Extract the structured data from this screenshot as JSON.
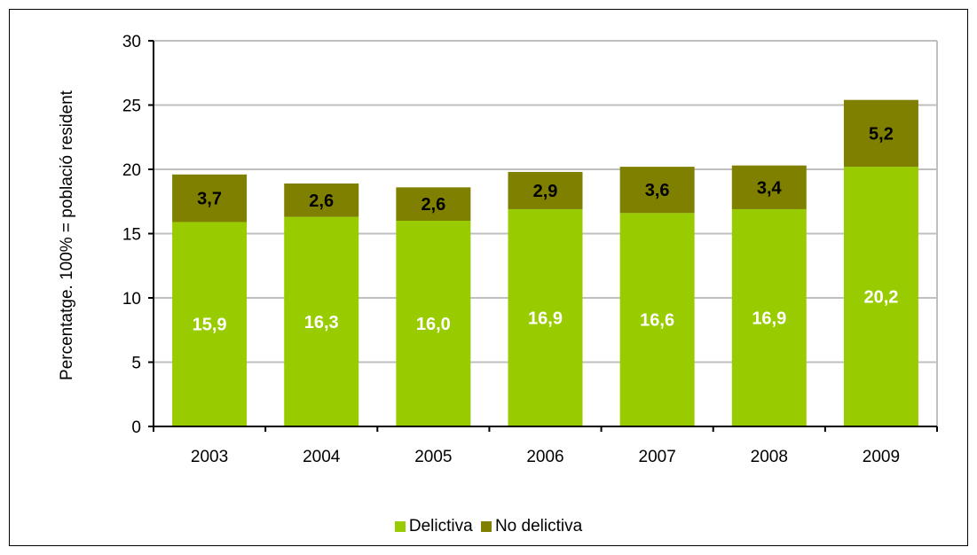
{
  "chart_data": {
    "type": "bar",
    "stacked": true,
    "ylabel": "Percentatge. 100% = població resident",
    "ylim": [
      0,
      30
    ],
    "yticks": [
      0,
      5,
      10,
      15,
      20,
      25,
      30
    ],
    "grid": true,
    "legend_position": "bottom",
    "categories": [
      "2003",
      "2004",
      "2005",
      "2006",
      "2007",
      "2008",
      "2009"
    ],
    "series": [
      {
        "name": "Delictiva",
        "color": "#99CC00",
        "label_color": "#FFFFFF",
        "values": [
          15.9,
          16.3,
          16.0,
          16.9,
          16.6,
          16.9,
          20.2
        ],
        "labels": [
          "15,9",
          "16,3",
          "16,0",
          "16,9",
          "16,6",
          "16,9",
          "20,2"
        ]
      },
      {
        "name": "No delictiva",
        "color": "#808000",
        "label_color": "#000000",
        "values": [
          3.7,
          2.6,
          2.6,
          2.9,
          3.6,
          3.4,
          5.2
        ],
        "labels": [
          "3,7",
          "2,6",
          "2,6",
          "2,9",
          "3,6",
          "3,4",
          "5,2"
        ]
      }
    ]
  }
}
